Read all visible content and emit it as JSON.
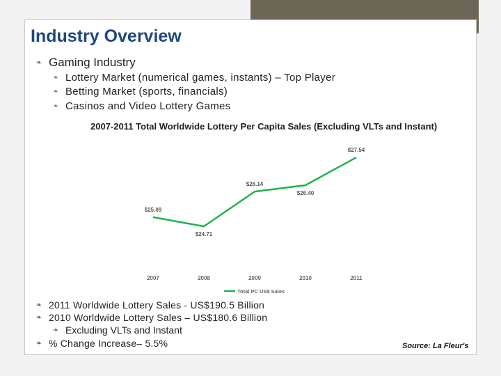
{
  "slide": {
    "title": "Industry Overview",
    "main_bullet": "Gaming Industry",
    "sub_bullets": [
      "Lottery Market (numerical games, instants) – Top Player",
      "Betting Market (sports, financials)",
      "Casinos and Video Lottery Games"
    ],
    "stats": [
      "2011 Worldwide Lottery Sales - US$190.5 Billion",
      "2010 Worldwide Lottery Sales – US$180.6 Billion",
      "Excluding VLTs and Instant",
      "% Change Increase– 5.5%"
    ],
    "source": "Source: La Fleur's"
  },
  "colors": {
    "accent": "#6b6656",
    "title": "#1f497d",
    "line": "#22b14c"
  },
  "chart_data": {
    "type": "line",
    "title": "2007-2011 Total Worldwide Lottery Per Capita Sales (Excluding VLTs and Instant)",
    "categories": [
      "2007",
      "2008",
      "2009",
      "2010",
      "2011"
    ],
    "series": [
      {
        "name": "Total PC US$ Sales",
        "values": [
          25.09,
          24.71,
          26.14,
          26.4,
          27.54
        ],
        "labels": [
          "$25.09",
          "$24.71",
          "$26.14",
          "$26.40",
          "$27.54"
        ]
      }
    ],
    "ylim": [
      24.0,
      28.0
    ],
    "grid": false,
    "legend": "bottom"
  }
}
